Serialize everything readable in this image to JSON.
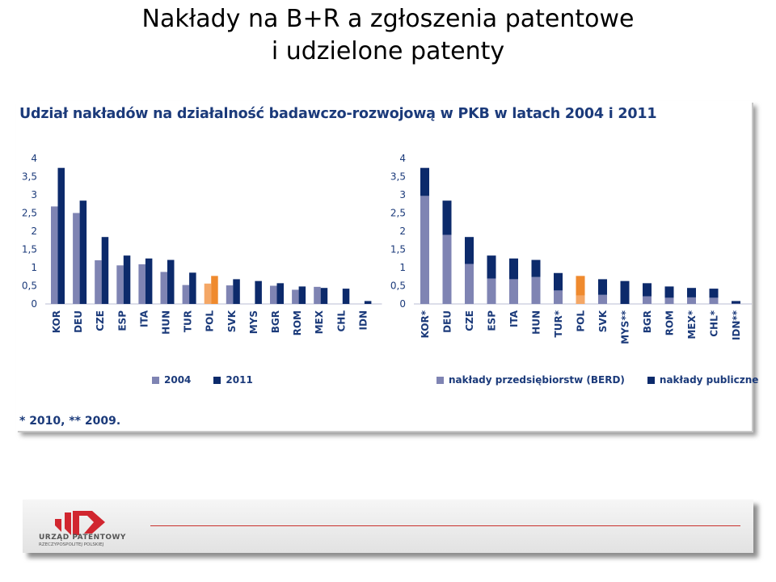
{
  "slide": {
    "title_line1": "Nakłady na B+R a zgłoszenia patentowe",
    "title_line2": "i udzielone patenty"
  },
  "panel": {
    "heading": "Udział nakładów na działalność badawczo-rozwojową w PKB w latach 2004 i 2011",
    "footnote": "* 2010, ** 2009."
  },
  "colors": {
    "series_light": "#7f84b3",
    "series_dark": "#0c2a6b",
    "highlight_light": "#f4a766",
    "highlight_dark": "#ef8a2e",
    "axis_text": "#1b3a7a",
    "logo_red": "#d1262f"
  },
  "footer": {
    "logo_line1": "URZĄD PATENTOWY",
    "logo_line2": "RZECZYPOSPOLITEJ POLSKIEJ",
    "logo_icon": "urzad-patentowy-logo"
  },
  "chart_data": [
    {
      "type": "bar",
      "layout": "grouped",
      "highlight_category": "POL",
      "categories": [
        "KOR",
        "DEU",
        "CZE",
        "ESP",
        "ITA",
        "HUN",
        "TUR",
        "POL",
        "SVK",
        "MYS",
        "BGR",
        "ROM",
        "MEX",
        "CHL",
        "IDN"
      ],
      "series": [
        {
          "name": "2004",
          "values": [
            2.68,
            2.5,
            1.2,
            1.06,
            1.09,
            0.88,
            0.52,
            0.56,
            0.51,
            null,
            0.5,
            0.39,
            0.47,
            null,
            null
          ]
        },
        {
          "name": "2011",
          "values": [
            3.74,
            2.84,
            1.84,
            1.33,
            1.25,
            1.21,
            0.86,
            0.77,
            0.68,
            0.63,
            0.57,
            0.48,
            0.44,
            0.42,
            0.08
          ]
        }
      ],
      "y_ticks": [
        "0",
        "0,5",
        "1",
        "1,5",
        "2",
        "2,5",
        "3",
        "3,5",
        "4"
      ],
      "ylim": [
        0,
        4
      ],
      "legend_position": "bottom"
    },
    {
      "type": "bar",
      "layout": "stacked",
      "highlight_category": "POL",
      "categories": [
        "KOR*",
        "DEU",
        "CZE",
        "ESP",
        "ITA",
        "HUN",
        "TUR*",
        "POL",
        "SVK",
        "MYS**",
        "BGR",
        "ROM",
        "MEX*",
        "CHL*",
        "IDN**"
      ],
      "series": [
        {
          "name": "nakłady przedsiębiorstw (BERD)",
          "values": [
            2.97,
            1.9,
            1.1,
            0.7,
            0.68,
            0.74,
            0.37,
            0.23,
            0.25,
            0.0,
            0.21,
            0.17,
            0.18,
            0.17,
            0.01
          ]
        },
        {
          "name": "nakłady publiczne",
          "values": [
            0.77,
            0.94,
            0.74,
            0.63,
            0.57,
            0.47,
            0.48,
            0.54,
            0.43,
            0.63,
            0.36,
            0.31,
            0.26,
            0.25,
            0.07
          ]
        }
      ],
      "y_ticks": [
        "0",
        "0,5",
        "1",
        "1,5",
        "2",
        "2,5",
        "3",
        "3,5",
        "4"
      ],
      "ylim": [
        0,
        4
      ],
      "legend_position": "bottom"
    }
  ]
}
